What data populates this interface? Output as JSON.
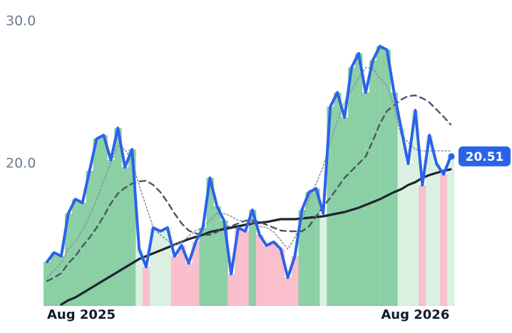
{
  "chart_data": {
    "type": "line",
    "x": [
      0,
      1,
      2,
      3,
      4,
      5,
      6,
      7,
      8,
      9,
      10,
      11,
      12,
      13,
      14,
      15,
      16,
      17,
      18,
      19,
      20,
      21,
      22,
      23,
      24,
      25,
      26,
      27,
      28,
      29,
      30,
      31,
      32,
      33,
      34,
      35,
      36,
      37,
      38,
      39,
      40,
      41,
      42,
      43,
      44,
      45,
      46,
      47,
      48,
      49,
      50,
      51,
      52,
      53,
      54,
      55,
      56,
      57
    ],
    "xlim": [
      0,
      57
    ],
    "xticks": [
      {
        "value": 0,
        "label": "Aug 2025"
      },
      {
        "value": 52,
        "label": "Aug 2026"
      }
    ],
    "ylim": [
      10,
      30
    ],
    "yticks": [
      {
        "value": 30,
        "label": "30.0"
      },
      {
        "value": 20,
        "label": "20.0"
      }
    ],
    "grid": false,
    "series": [
      {
        "color": "#2b63e8",
        "width": 4,
        "dash": "none",
        "values": [
          13.1,
          13.75,
          13.5,
          16.5,
          17.5,
          17.25,
          19.5,
          21.75,
          22,
          20.25,
          22.5,
          19.75,
          21,
          14,
          12.75,
          15.5,
          15.25,
          15.5,
          13.5,
          14.25,
          13,
          14.5,
          15.5,
          19,
          17,
          16,
          12.25,
          15.5,
          15.25,
          16.75,
          15,
          14.25,
          14.5,
          14,
          12,
          13.5,
          16.75,
          18,
          18.25,
          16.5,
          24,
          25,
          23.25,
          26.75,
          27.75,
          25,
          27.25,
          28.25,
          28,
          25,
          22.5,
          20,
          23.75,
          18.5,
          22,
          20,
          19.25,
          20.51
        ]
      },
      {
        "color": "#8a94a3",
        "width": 1.6,
        "dash": "2,3",
        "values": [
          12,
          12.5,
          13,
          14,
          14.5,
          15.3,
          16.3,
          17.5,
          18.8,
          20,
          21.25,
          21,
          20.2,
          18.5,
          17,
          15.5,
          15,
          14.6,
          14.25,
          14.5,
          14.9,
          15.3,
          15.5,
          16,
          16.5,
          16.5,
          16.3,
          16,
          16,
          15.8,
          15.6,
          15.5,
          15.2,
          14.6,
          14,
          14.8,
          16,
          17.5,
          18.6,
          19.8,
          21.5,
          23,
          24.3,
          25.2,
          26,
          26.75,
          26.7,
          26,
          25.5,
          24,
          22,
          21.5,
          21,
          20.9,
          20.9,
          20.9,
          20.9,
          20.9
        ]
      },
      {
        "color": "#4b5666",
        "width": 2.4,
        "dash": "8,6",
        "values": [
          11.75,
          12,
          12.3,
          13,
          13.5,
          14.2,
          14.8,
          15.5,
          16.3,
          17.2,
          17.9,
          18.3,
          18.6,
          18.75,
          18.8,
          18.5,
          18,
          17.3,
          16.5,
          15.8,
          15.3,
          15.1,
          15,
          15,
          15.2,
          15.5,
          15.6,
          15.8,
          16,
          16,
          15.9,
          15.7,
          15.5,
          15.3,
          15.25,
          15.25,
          15.25,
          15.6,
          16.3,
          17,
          17.6,
          18.3,
          19,
          19.5,
          20,
          20.5,
          21.6,
          22.8,
          23.7,
          24.1,
          24.5,
          24.75,
          24.8,
          24.6,
          24.3,
          23.8,
          23.3,
          22.75
        ]
      },
      {
        "color": "#1e2532",
        "width": 3.2,
        "dash": "none",
        "values": [
          null,
          null,
          10.1,
          10.4,
          10.6,
          10.9,
          11.2,
          11.5,
          11.8,
          12.1,
          12.4,
          12.7,
          13,
          13.3,
          13.5,
          13.7,
          13.9,
          14.1,
          14.3,
          14.5,
          14.7,
          14.85,
          15,
          15.2,
          15.3,
          15.4,
          15.5,
          15.6,
          15.7,
          15.8,
          15.85,
          15.9,
          16,
          16.1,
          16.1,
          16.1,
          16.15,
          16.2,
          16.25,
          16.3,
          16.4,
          16.5,
          16.6,
          16.75,
          16.9,
          17.1,
          17.3,
          17.5,
          17.75,
          18,
          18.2,
          18.5,
          18.7,
          19,
          19.2,
          19.35,
          19.5,
          19.6
        ]
      }
    ],
    "band_colors": {
      "strong_up": "#7fcb9b",
      "up": "#d6efdf",
      "weak_down": "#fcdde4",
      "down": "#f8b8c6"
    }
  }
}
